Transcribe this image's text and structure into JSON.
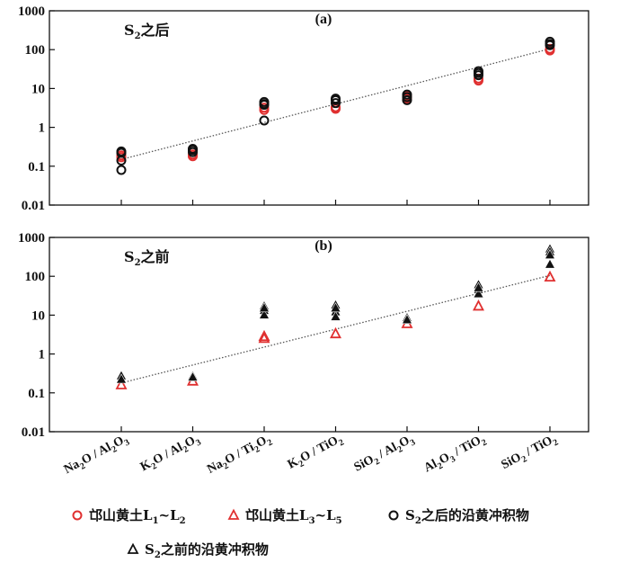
{
  "chart_data": [
    {
      "panel": "(a)",
      "type": "scatter",
      "note": "S2之后",
      "note_parts": [
        "S",
        "2",
        "之后"
      ],
      "yscale": "log",
      "ylim": [
        0.01,
        1000
      ],
      "yticks": [
        "0.01",
        "0.1",
        "1",
        "10",
        "100",
        "1000"
      ],
      "categories": [
        "Na2O/Al2O3",
        "K2O/Al2O3",
        "Na2O/Ti2O2",
        "K2O/TiO2",
        "SiO2/Al2O3",
        "Al2O3/TiO2",
        "SiO2/TiO2"
      ],
      "reference_line": {
        "x": [
          1,
          7
        ],
        "y": [
          0.15,
          105
        ],
        "style": "dotted"
      },
      "series": [
        {
          "name": "邙山黄土L1~L2",
          "marker": "circle",
          "color": "#e03030",
          "points": [
            [
              1,
              0.19
            ],
            [
              1,
              0.17
            ],
            [
              2,
              0.2
            ],
            [
              2,
              0.18
            ],
            [
              3,
              3.2
            ],
            [
              3,
              2.8
            ],
            [
              4,
              3.3
            ],
            [
              4,
              3.0
            ],
            [
              5,
              5.5
            ],
            [
              5,
              6.5
            ],
            [
              6,
              18
            ],
            [
              6,
              16
            ],
            [
              7,
              105
            ],
            [
              7,
              95
            ]
          ]
        },
        {
          "name": "S2之后的沿黄冲积物",
          "marker": "circle",
          "color": "#111111",
          "points": [
            [
              1,
              0.22
            ],
            [
              1,
              0.24
            ],
            [
              1,
              0.14
            ],
            [
              1,
              0.08
            ],
            [
              2,
              0.26
            ],
            [
              2,
              0.23
            ],
            [
              2,
              0.28
            ],
            [
              3,
              4.5
            ],
            [
              3,
              3.8
            ],
            [
              3,
              4.0
            ],
            [
              3,
              1.5
            ],
            [
              4,
              5.0
            ],
            [
              4,
              4.2
            ],
            [
              4,
              5.5
            ],
            [
              5,
              7.0
            ],
            [
              5,
              5.0
            ],
            [
              5,
              6.0
            ],
            [
              6,
              28
            ],
            [
              6,
              25
            ],
            [
              6,
              22
            ],
            [
              7,
              160
            ],
            [
              7,
              140
            ],
            [
              7,
              130
            ]
          ]
        }
      ]
    },
    {
      "panel": "(b)",
      "type": "scatter",
      "note": "S2之前",
      "note_parts": [
        "S",
        "2",
        "之前"
      ],
      "yscale": "log",
      "ylim": [
        0.01,
        1000
      ],
      "yticks": [
        "0.01",
        "0.1",
        "1",
        "10",
        "100",
        "1000"
      ],
      "categories": [
        "Na2O/Al2O3",
        "K2O/Al2O3",
        "Na2O/Ti2O2",
        "K2O/TiO2",
        "SiO2/Al2O3",
        "Al2O3/TiO2",
        "SiO2/TiO2"
      ],
      "reference_line": {
        "x": [
          1,
          7
        ],
        "y": [
          0.18,
          105
        ],
        "style": "dotted"
      },
      "series": [
        {
          "name": "邙山黄土L3~L5",
          "marker": "triangle",
          "color": "#e03030",
          "points": [
            [
              1,
              0.16
            ],
            [
              2,
              0.2
            ],
            [
              3,
              2.8
            ],
            [
              3,
              2.5
            ],
            [
              4,
              3.3
            ],
            [
              5,
              6.0
            ],
            [
              6,
              17
            ],
            [
              7,
              95
            ]
          ]
        },
        {
          "name": "S2之前的沿黄冲积物",
          "marker": "triangle-filled",
          "color": "#111111",
          "points": [
            [
              1,
              0.27
            ],
            [
              1,
              0.22
            ],
            [
              2,
              0.27
            ],
            [
              2,
              0.25
            ],
            [
              3,
              17
            ],
            [
              3,
              13
            ],
            [
              3,
              10
            ],
            [
              3,
              15
            ],
            [
              4,
              18
            ],
            [
              4,
              12
            ],
            [
              4,
              9
            ],
            [
              4,
              15
            ],
            [
              5,
              8.5
            ],
            [
              5,
              7.5
            ],
            [
              6,
              60
            ],
            [
              6,
              45
            ],
            [
              6,
              35
            ],
            [
              6,
              50
            ],
            [
              7,
              500
            ],
            [
              7,
              420
            ],
            [
              7,
              350
            ],
            [
              7,
              200
            ]
          ]
        }
      ]
    }
  ],
  "legend": [
    {
      "label": "邙山黄土L1~L2",
      "parts": [
        "邙山黄土L",
        "1",
        "~L",
        "2"
      ],
      "marker": "circle",
      "color": "#e03030"
    },
    {
      "label": "邙山黄土L3~L5",
      "parts": [
        "邙山黄土L",
        "3",
        "~L",
        "5"
      ],
      "marker": "triangle",
      "color": "#e03030"
    },
    {
      "label": "S2之后的沿黄冲积物",
      "parts": [
        "S",
        "2",
        "之后的沿黄冲积物"
      ],
      "marker": "circle",
      "color": "#111111"
    },
    {
      "label": "S2之前的沿黄冲积物",
      "parts": [
        "S",
        "2",
        "之前的沿黄冲积物"
      ],
      "marker": "triangle",
      "color": "#111111"
    }
  ]
}
